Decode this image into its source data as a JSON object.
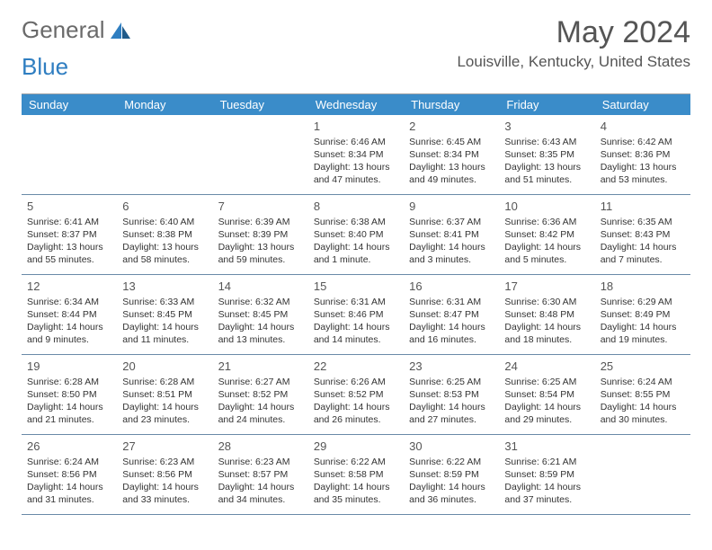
{
  "logo": {
    "general": "General",
    "blue": "Blue"
  },
  "title": "May 2024",
  "location": "Louisville, Kentucky, United States",
  "colors": {
    "header_bar": "#3a8cc9",
    "row_divider": "#6a8aa8",
    "text": "#333333",
    "title_text": "#555555"
  },
  "days_of_week": [
    "Sunday",
    "Monday",
    "Tuesday",
    "Wednesday",
    "Thursday",
    "Friday",
    "Saturday"
  ],
  "weeks": [
    [
      null,
      null,
      null,
      {
        "n": "1",
        "sr": "Sunrise: 6:46 AM",
        "ss": "Sunset: 8:34 PM",
        "dl1": "Daylight: 13 hours",
        "dl2": "and 47 minutes."
      },
      {
        "n": "2",
        "sr": "Sunrise: 6:45 AM",
        "ss": "Sunset: 8:34 PM",
        "dl1": "Daylight: 13 hours",
        "dl2": "and 49 minutes."
      },
      {
        "n": "3",
        "sr": "Sunrise: 6:43 AM",
        "ss": "Sunset: 8:35 PM",
        "dl1": "Daylight: 13 hours",
        "dl2": "and 51 minutes."
      },
      {
        "n": "4",
        "sr": "Sunrise: 6:42 AM",
        "ss": "Sunset: 8:36 PM",
        "dl1": "Daylight: 13 hours",
        "dl2": "and 53 minutes."
      }
    ],
    [
      {
        "n": "5",
        "sr": "Sunrise: 6:41 AM",
        "ss": "Sunset: 8:37 PM",
        "dl1": "Daylight: 13 hours",
        "dl2": "and 55 minutes."
      },
      {
        "n": "6",
        "sr": "Sunrise: 6:40 AM",
        "ss": "Sunset: 8:38 PM",
        "dl1": "Daylight: 13 hours",
        "dl2": "and 58 minutes."
      },
      {
        "n": "7",
        "sr": "Sunrise: 6:39 AM",
        "ss": "Sunset: 8:39 PM",
        "dl1": "Daylight: 13 hours",
        "dl2": "and 59 minutes."
      },
      {
        "n": "8",
        "sr": "Sunrise: 6:38 AM",
        "ss": "Sunset: 8:40 PM",
        "dl1": "Daylight: 14 hours",
        "dl2": "and 1 minute."
      },
      {
        "n": "9",
        "sr": "Sunrise: 6:37 AM",
        "ss": "Sunset: 8:41 PM",
        "dl1": "Daylight: 14 hours",
        "dl2": "and 3 minutes."
      },
      {
        "n": "10",
        "sr": "Sunrise: 6:36 AM",
        "ss": "Sunset: 8:42 PM",
        "dl1": "Daylight: 14 hours",
        "dl2": "and 5 minutes."
      },
      {
        "n": "11",
        "sr": "Sunrise: 6:35 AM",
        "ss": "Sunset: 8:43 PM",
        "dl1": "Daylight: 14 hours",
        "dl2": "and 7 minutes."
      }
    ],
    [
      {
        "n": "12",
        "sr": "Sunrise: 6:34 AM",
        "ss": "Sunset: 8:44 PM",
        "dl1": "Daylight: 14 hours",
        "dl2": "and 9 minutes."
      },
      {
        "n": "13",
        "sr": "Sunrise: 6:33 AM",
        "ss": "Sunset: 8:45 PM",
        "dl1": "Daylight: 14 hours",
        "dl2": "and 11 minutes."
      },
      {
        "n": "14",
        "sr": "Sunrise: 6:32 AM",
        "ss": "Sunset: 8:45 PM",
        "dl1": "Daylight: 14 hours",
        "dl2": "and 13 minutes."
      },
      {
        "n": "15",
        "sr": "Sunrise: 6:31 AM",
        "ss": "Sunset: 8:46 PM",
        "dl1": "Daylight: 14 hours",
        "dl2": "and 14 minutes."
      },
      {
        "n": "16",
        "sr": "Sunrise: 6:31 AM",
        "ss": "Sunset: 8:47 PM",
        "dl1": "Daylight: 14 hours",
        "dl2": "and 16 minutes."
      },
      {
        "n": "17",
        "sr": "Sunrise: 6:30 AM",
        "ss": "Sunset: 8:48 PM",
        "dl1": "Daylight: 14 hours",
        "dl2": "and 18 minutes."
      },
      {
        "n": "18",
        "sr": "Sunrise: 6:29 AM",
        "ss": "Sunset: 8:49 PM",
        "dl1": "Daylight: 14 hours",
        "dl2": "and 19 minutes."
      }
    ],
    [
      {
        "n": "19",
        "sr": "Sunrise: 6:28 AM",
        "ss": "Sunset: 8:50 PM",
        "dl1": "Daylight: 14 hours",
        "dl2": "and 21 minutes."
      },
      {
        "n": "20",
        "sr": "Sunrise: 6:28 AM",
        "ss": "Sunset: 8:51 PM",
        "dl1": "Daylight: 14 hours",
        "dl2": "and 23 minutes."
      },
      {
        "n": "21",
        "sr": "Sunrise: 6:27 AM",
        "ss": "Sunset: 8:52 PM",
        "dl1": "Daylight: 14 hours",
        "dl2": "and 24 minutes."
      },
      {
        "n": "22",
        "sr": "Sunrise: 6:26 AM",
        "ss": "Sunset: 8:52 PM",
        "dl1": "Daylight: 14 hours",
        "dl2": "and 26 minutes."
      },
      {
        "n": "23",
        "sr": "Sunrise: 6:25 AM",
        "ss": "Sunset: 8:53 PM",
        "dl1": "Daylight: 14 hours",
        "dl2": "and 27 minutes."
      },
      {
        "n": "24",
        "sr": "Sunrise: 6:25 AM",
        "ss": "Sunset: 8:54 PM",
        "dl1": "Daylight: 14 hours",
        "dl2": "and 29 minutes."
      },
      {
        "n": "25",
        "sr": "Sunrise: 6:24 AM",
        "ss": "Sunset: 8:55 PM",
        "dl1": "Daylight: 14 hours",
        "dl2": "and 30 minutes."
      }
    ],
    [
      {
        "n": "26",
        "sr": "Sunrise: 6:24 AM",
        "ss": "Sunset: 8:56 PM",
        "dl1": "Daylight: 14 hours",
        "dl2": "and 31 minutes."
      },
      {
        "n": "27",
        "sr": "Sunrise: 6:23 AM",
        "ss": "Sunset: 8:56 PM",
        "dl1": "Daylight: 14 hours",
        "dl2": "and 33 minutes."
      },
      {
        "n": "28",
        "sr": "Sunrise: 6:23 AM",
        "ss": "Sunset: 8:57 PM",
        "dl1": "Daylight: 14 hours",
        "dl2": "and 34 minutes."
      },
      {
        "n": "29",
        "sr": "Sunrise: 6:22 AM",
        "ss": "Sunset: 8:58 PM",
        "dl1": "Daylight: 14 hours",
        "dl2": "and 35 minutes."
      },
      {
        "n": "30",
        "sr": "Sunrise: 6:22 AM",
        "ss": "Sunset: 8:59 PM",
        "dl1": "Daylight: 14 hours",
        "dl2": "and 36 minutes."
      },
      {
        "n": "31",
        "sr": "Sunrise: 6:21 AM",
        "ss": "Sunset: 8:59 PM",
        "dl1": "Daylight: 14 hours",
        "dl2": "and 37 minutes."
      },
      null
    ]
  ]
}
